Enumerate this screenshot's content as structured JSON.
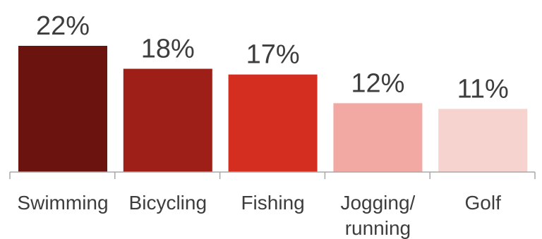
{
  "chart_data": {
    "type": "bar",
    "categories": [
      "Swimming",
      "Bicycling",
      "Fishing",
      "Jogging/\nrunning",
      "Golf"
    ],
    "values": [
      22,
      18,
      17,
      12,
      11
    ],
    "value_labels": [
      "22%",
      "18%",
      "17%",
      "12%",
      "11%"
    ],
    "colors": [
      "#6b140f",
      "#9e1f17",
      "#d42e20",
      "#f2a9a3",
      "#f7d3cf"
    ],
    "title": "",
    "xlabel": "",
    "ylabel": "",
    "ylim": [
      0,
      22
    ],
    "grid": false,
    "legend": "none"
  }
}
